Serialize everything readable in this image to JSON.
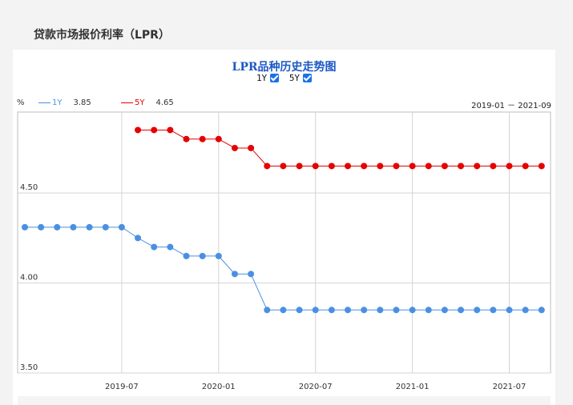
{
  "page": {
    "title": "贷款市场报价利率（LPR）"
  },
  "chart_toggles": [
    {
      "label": "1Y",
      "checked": true
    },
    {
      "label": "5Y",
      "checked": true
    }
  ],
  "legend": {
    "unit": "%",
    "items": [
      {
        "name": "1Y",
        "value": "3.85",
        "color": "#4a90e2"
      },
      {
        "name": "5Y",
        "value": "4.65",
        "color": "#e60000"
      }
    ],
    "range": "2019-01 － 2021-09"
  },
  "chart_data": {
    "type": "line",
    "title": "LPR品种历史走势图",
    "ylim": [
      3.5,
      4.95
    ],
    "yticks": [
      "3.50",
      "4.00",
      "4.50"
    ],
    "x": [
      "2019-01",
      "2019-02",
      "2019-03",
      "2019-04",
      "2019-05",
      "2019-06",
      "2019-07",
      "2019-08",
      "2019-09",
      "2019-10",
      "2019-11",
      "2019-12",
      "2020-01",
      "2020-02",
      "2020-03",
      "2020-04",
      "2020-05",
      "2020-06",
      "2020-07",
      "2020-08",
      "2020-09",
      "2020-10",
      "2020-11",
      "2020-12",
      "2021-01",
      "2021-02",
      "2021-03",
      "2021-04",
      "2021-05",
      "2021-06",
      "2021-07",
      "2021-08",
      "2021-09"
    ],
    "xticks": [
      "2019-07",
      "2020-01",
      "2020-07",
      "2021-01",
      "2021-07"
    ],
    "grid": true,
    "series": [
      {
        "name": "1Y",
        "color": "#4a90e2",
        "values": [
          4.31,
          4.31,
          4.31,
          4.31,
          4.31,
          4.31,
          4.31,
          4.25,
          4.2,
          4.2,
          4.15,
          4.15,
          4.15,
          4.05,
          4.05,
          3.85,
          3.85,
          3.85,
          3.85,
          3.85,
          3.85,
          3.85,
          3.85,
          3.85,
          3.85,
          3.85,
          3.85,
          3.85,
          3.85,
          3.85,
          3.85,
          3.85,
          3.85
        ]
      },
      {
        "name": "5Y",
        "color": "#e60000",
        "values": [
          null,
          null,
          null,
          null,
          null,
          null,
          null,
          4.85,
          4.85,
          4.85,
          4.8,
          4.8,
          4.8,
          4.75,
          4.75,
          4.65,
          4.65,
          4.65,
          4.65,
          4.65,
          4.65,
          4.65,
          4.65,
          4.65,
          4.65,
          4.65,
          4.65,
          4.65,
          4.65,
          4.65,
          4.65,
          4.65,
          4.65
        ]
      }
    ]
  }
}
